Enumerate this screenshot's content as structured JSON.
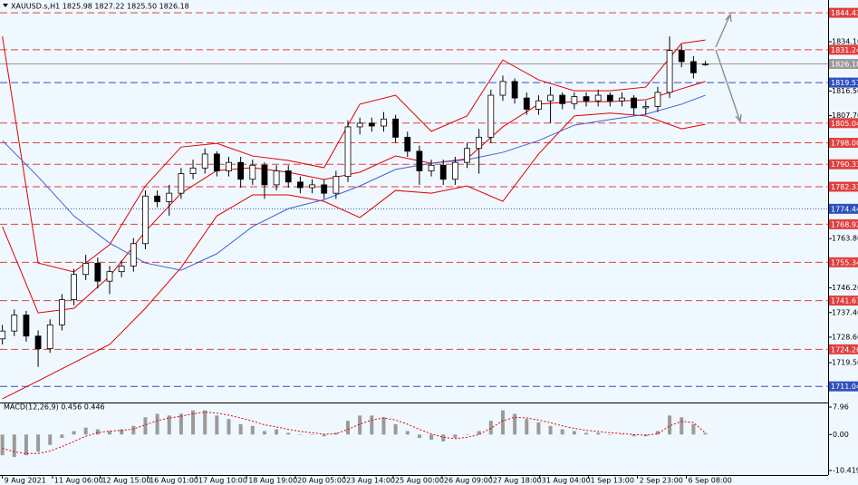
{
  "chart_data": [
    {
      "type": "candlestick",
      "title": "XAUUSD.s,H1 1825.98 1827.22 1825.50 1826.18",
      "x": [
        0,
        1,
        2,
        3,
        4,
        5,
        6,
        7,
        8,
        9,
        10,
        11,
        12,
        13,
        14,
        15,
        16,
        17,
        18,
        19,
        20,
        21,
        22,
        23,
        24,
        25,
        26,
        27,
        28,
        29,
        30,
        31,
        32,
        33,
        34,
        35,
        36,
        37,
        38,
        39,
        40,
        41,
        42,
        43,
        44,
        45,
        46,
        47,
        48,
        49,
        50,
        51,
        52,
        53,
        54,
        55,
        56,
        57,
        58,
        59
      ],
      "open": [
        1728,
        1730.8,
        1736.5,
        1729,
        1724.5,
        1733,
        1742,
        1751,
        1755,
        1748.6,
        1752,
        1754,
        1762,
        1779,
        1777,
        1780,
        1787,
        1789,
        1794,
        1788,
        1791,
        1785,
        1790,
        1783,
        1788,
        1784,
        1782,
        1783,
        1780,
        1786,
        1803.7,
        1805,
        1804,
        1806.5,
        1800,
        1795,
        1788,
        1790,
        1785,
        1791,
        1796,
        1800,
        1815,
        1819.9,
        1814,
        1810,
        1813,
        1815,
        1812,
        1814.5,
        1813,
        1815,
        1813,
        1814,
        1810.5,
        1811,
        1816,
        1831,
        1827,
        1825.98
      ],
      "high": [
        1733,
        1738.5,
        1738,
        1731,
        1735,
        1744,
        1753,
        1758,
        1757,
        1754,
        1756,
        1764,
        1781,
        1781,
        1783,
        1789,
        1792,
        1796,
        1795,
        1793,
        1793,
        1792,
        1791,
        1790,
        1790,
        1786,
        1785,
        1785,
        1788,
        1806,
        1807,
        1807,
        1809,
        1808,
        1802,
        1797,
        1792,
        1792,
        1793,
        1798,
        1803,
        1817,
        1822,
        1821,
        1816,
        1815,
        1818,
        1816,
        1816,
        1816,
        1817,
        1816,
        1816,
        1815,
        1813,
        1818,
        1836,
        1833,
        1829,
        1827.22
      ],
      "low": [
        1726,
        1729,
        1727,
        1718,
        1723,
        1731,
        1740,
        1749,
        1746,
        1744,
        1750,
        1752,
        1760,
        1775,
        1772,
        1778,
        1785,
        1787,
        1786,
        1786,
        1782,
        1783,
        1778,
        1781,
        1782,
        1780,
        1780,
        1778,
        1778,
        1784,
        1801,
        1802,
        1802,
        1798,
        1793,
        1783,
        1786,
        1783,
        1783,
        1789,
        1787,
        1798,
        1813,
        1812,
        1808,
        1808,
        1805,
        1810,
        1810,
        1811,
        1811,
        1811,
        1811,
        1808,
        1808,
        1809,
        1814,
        1825,
        1821,
        1825.5
      ],
      "close": [
        1730.8,
        1736.5,
        1729,
        1724.5,
        1733,
        1742,
        1751,
        1755,
        1748.6,
        1752,
        1754,
        1762,
        1779,
        1777,
        1780,
        1787,
        1789,
        1794,
        1788,
        1791,
        1785,
        1790,
        1783,
        1788,
        1784,
        1782,
        1783,
        1780,
        1786,
        1803.7,
        1805,
        1804,
        1806.5,
        1800,
        1795,
        1788,
        1790,
        1785,
        1791,
        1796,
        1800,
        1815,
        1819.9,
        1814,
        1810,
        1813,
        1815,
        1812,
        1814.5,
        1813,
        1815,
        1813,
        1814,
        1810.5,
        1811,
        1816,
        1831,
        1827,
        1823,
        1826.18
      ],
      "up_color": "#ffffff",
      "down_color": "#000000",
      "overlays": [
        {
          "color": "#e00000",
          "x": [
            0,
            3,
            6,
            9,
            12,
            15,
            18,
            21,
            24,
            27,
            30,
            33,
            36,
            39,
            42,
            45,
            48,
            51,
            54,
            57,
            59
          ],
          "values": [
            1836.0,
            1755.1,
            1751.9,
            1761.6,
            1782.6,
            1796.5,
            1797.8,
            1793.3,
            1791.7,
            1789.1,
            1811.8,
            1815.0,
            1802.1,
            1807.6,
            1827.6,
            1820.5,
            1816.6,
            1816.6,
            1817.9,
            1833.5,
            1834.7
          ]
        },
        {
          "color": "#e00000",
          "x": [
            0,
            3,
            6,
            9,
            12,
            15,
            18,
            21,
            24,
            27,
            30,
            33,
            36,
            39,
            42,
            45,
            48,
            51,
            54,
            57,
            59
          ],
          "values": [
            1768.1,
            1737.3,
            1738.9,
            1750.3,
            1766.4,
            1780.0,
            1788.1,
            1789.1,
            1787.5,
            1784.9,
            1787.5,
            1793.3,
            1790.7,
            1792.3,
            1803.7,
            1811.8,
            1812.7,
            1812.7,
            1813.4,
            1817.3,
            1819.9
          ]
        },
        {
          "color": "#e00000",
          "x": [
            0,
            3,
            6,
            9,
            12,
            15,
            18,
            21,
            24,
            27,
            30,
            33,
            36,
            39,
            42,
            45,
            48,
            51,
            54,
            57,
            59
          ],
          "values": [
            1706.6,
            1713.0,
            1719.5,
            1726.0,
            1738.9,
            1753.5,
            1771.9,
            1779.4,
            1779.4,
            1777.1,
            1771.3,
            1781.0,
            1780.0,
            1782.6,
            1777.1,
            1794.0,
            1807.6,
            1808.6,
            1807.6,
            1803.0,
            1804.6
          ]
        },
        {
          "color": "#4060d0",
          "x": [
            0,
            3,
            6,
            9,
            12,
            15,
            18,
            21,
            24,
            27,
            30,
            33,
            36,
            39,
            42,
            45,
            48,
            51,
            54,
            57,
            59
          ],
          "values": [
            1798.8,
            1785.9,
            1771.9,
            1762.2,
            1755.1,
            1752.5,
            1758.4,
            1768.1,
            1774.5,
            1777.7,
            1782.6,
            1788.5,
            1790.7,
            1792.0,
            1794.6,
            1798.8,
            1804.3,
            1806.3,
            1808.2,
            1811.8,
            1815.0
          ]
        }
      ],
      "levels": [
        {
          "value": 1844.43,
          "color": "#e04040",
          "style": "dashed"
        },
        {
          "value": 1831.24,
          "color": "#e04040",
          "style": "dashed"
        },
        {
          "value": 1826.18,
          "color": "#9a9a9a",
          "style": "solid"
        },
        {
          "value": 1819.51,
          "color": "#3050c0",
          "style": "dashed"
        },
        {
          "value": 1805.04,
          "color": "#e04040",
          "style": "dashed"
        },
        {
          "value": 1798.0,
          "color": "#e04040",
          "style": "dashed"
        },
        {
          "value": 1790.33,
          "color": "#e04040",
          "style": "dashed"
        },
        {
          "value": 1782.33,
          "color": "#e04040",
          "style": "dashed"
        },
        {
          "value": 1774.44,
          "color": "#3050c0",
          "style": "dotted"
        },
        {
          "value": 1768.92,
          "color": "#e04040",
          "style": "dashed"
        },
        {
          "value": 1755.34,
          "color": "#e04040",
          "style": "dashed"
        },
        {
          "value": 1741.67,
          "color": "#e04040",
          "style": "dashed"
        },
        {
          "value": 1724.26,
          "color": "#e04040",
          "style": "dashed"
        },
        {
          "value": 1711.04,
          "color": "#3050c0",
          "style": "dashed"
        }
      ],
      "level_labels": [
        "1844.43",
        "1831.24",
        "1826.18",
        "1819.51",
        "1805.04",
        "1798.00",
        "1790.33",
        "1782.33",
        "1774.44",
        "1768.92",
        "1755.34",
        "1741.67",
        "1724.26",
        "1711.04"
      ],
      "xlim": [
        -0.2,
        69.3
      ],
      "xticks": [
        {
          "value": 0,
          "label": "9 Aug 2021"
        },
        {
          "value": 4.2,
          "label": "11 Aug 06:00"
        },
        {
          "value": 8.2,
          "label": "12 Aug 15:00"
        },
        {
          "value": 12.2,
          "label": "16 Aug 01:00"
        },
        {
          "value": 16.3,
          "label": "17 Aug 10:00"
        },
        {
          "value": 20.5,
          "label": "18 Aug 19:00"
        },
        {
          "value": 24.6,
          "label": "20 Aug 05:00"
        },
        {
          "value": 28.7,
          "label": "23 Aug 14:00"
        },
        {
          "value": 32.8,
          "label": "25 Aug 00:00"
        },
        {
          "value": 36.9,
          "label": "26 Aug 09:00"
        },
        {
          "value": 41,
          "label": "27 Aug 18:00"
        },
        {
          "value": 45.1,
          "label": "31 Aug 04:00"
        },
        {
          "value": 49.2,
          "label": "1 Sep 13:00"
        },
        {
          "value": 53.3,
          "label": "2 Sep 23:00"
        },
        {
          "value": 57.4,
          "label": "6 Sep 08:00"
        }
      ],
      "ylim": [
        1705.6,
        1849.0
      ],
      "yticks": [
        {
          "value": 1834.1,
          "label": "1834.10"
        },
        {
          "value": 1816.5,
          "label": "1816.50"
        },
        {
          "value": 1807.7,
          "label": "1807.70"
        },
        {
          "value": 1763.8,
          "label": "1763.80"
        },
        {
          "value": 1746.2,
          "label": "1746.20"
        },
        {
          "value": 1737.4,
          "label": "1737.40"
        },
        {
          "value": 1728.6,
          "label": "1728.60"
        },
        {
          "value": 1719.5,
          "label": "1719.50"
        }
      ]
    },
    {
      "type": "bar",
      "title": "MACD(12,26,9) 0.456 0.446",
      "x": [
        0,
        1,
        2,
        3,
        4,
        5,
        6,
        7,
        8,
        9,
        10,
        11,
        12,
        13,
        14,
        15,
        16,
        17,
        18,
        19,
        20,
        21,
        22,
        23,
        24,
        25,
        26,
        27,
        28,
        29,
        30,
        31,
        32,
        33,
        34,
        35,
        36,
        37,
        38,
        39,
        40,
        41,
        42,
        43,
        44,
        45,
        46,
        47,
        48,
        49,
        50,
        51,
        52,
        53,
        54,
        55,
        56,
        57,
        58,
        59
      ],
      "values": [
        -6,
        -6.5,
        -6,
        -5,
        -3,
        -1,
        1,
        2,
        1.5,
        1,
        1.5,
        2.5,
        5,
        6,
        5.5,
        6,
        7,
        7,
        5.5,
        4.5,
        3,
        2.5,
        1,
        1.5,
        0.5,
        0,
        0,
        -0.5,
        0.5,
        4,
        5.5,
        5.5,
        5,
        3,
        1,
        -1,
        -1.5,
        -2,
        -1,
        0,
        1,
        4,
        7,
        6,
        4.5,
        3.5,
        2.5,
        1.5,
        1,
        0.5,
        0.5,
        0,
        0,
        -0.5,
        -0.5,
        1,
        5.5,
        5,
        3,
        0.456
      ],
      "color": "#9a9a9a",
      "signal": [
        -4,
        -5,
        -5.5,
        -5.5,
        -4.8,
        -3.5,
        -2,
        -0.5,
        0.5,
        1,
        1.2,
        1.6,
        2.8,
        4,
        4.8,
        5.3,
        6,
        6.5,
        6.2,
        5.6,
        4.8,
        3.9,
        2.8,
        2.2,
        1.5,
        0.9,
        0.5,
        0.1,
        0.2,
        1.5,
        3,
        4.2,
        4.8,
        4.2,
        3,
        1.5,
        0.2,
        -0.8,
        -1.2,
        -0.8,
        0,
        1.8,
        4,
        5,
        4.8,
        4.2,
        3.4,
        2.5,
        1.8,
        1.2,
        0.9,
        0.5,
        0.3,
        0,
        -0.2,
        0.2,
        2.5,
        3.8,
        3.5,
        0.446
      ],
      "signal_color": "#e00000",
      "xlim": [
        -0.2,
        69.3
      ],
      "ylim": [
        -10.419,
        7.96
      ],
      "yticks": [
        7.96,
        {
          "value": 0,
          "label": "0.00"
        },
        -10.419
      ]
    }
  ]
}
